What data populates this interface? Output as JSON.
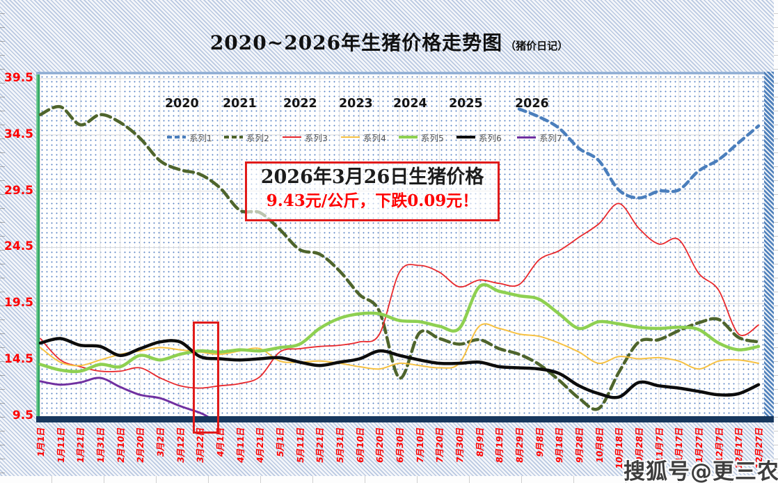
{
  "title": {
    "main": "2020~2026年生猪价格走势图",
    "suffix": "（猪价日记）"
  },
  "annotation": {
    "line1": "2026年3月26日生猪价格",
    "line2": "9.43元/公斤，下跌0.09元！"
  },
  "watermark": "搜狐号@更三农",
  "axis_colors": {
    "tick_label": "#fe0000"
  },
  "chart_data": {
    "type": "line",
    "title": "2020~2026年生猪价格走势图（猪价日记）",
    "ylabel": "",
    "xlabel": "",
    "ylim": [
      9.5,
      40.5
    ],
    "grid": true,
    "legend_position": "top",
    "y_ticks": [
      39.5,
      34.5,
      29.5,
      24.5,
      19.5,
      14.5,
      9.5
    ],
    "year_labels": [
      "2020",
      "2021",
      "2022",
      "2023",
      "2024",
      "2025",
      "2026"
    ],
    "x_tick_labels": [
      "1月1日",
      "1月11日",
      "1月21日",
      "1月31日",
      "2月10日",
      "2月20日",
      "3月2日",
      "3月12日",
      "3月22日",
      "4月1日",
      "4月11日",
      "4月21日",
      "5月1日",
      "5月11日",
      "5月21日",
      "5月31日",
      "6月10日",
      "6月20日",
      "6月30日",
      "7月10日",
      "7月20日",
      "7月30日",
      "8月9日",
      "8月19日",
      "8月29日",
      "9月8日",
      "9月18日",
      "9月28日",
      "10月8日",
      "10月18日",
      "10月28日",
      "11月7日",
      "11月17日",
      "11月27日",
      "12月7日",
      "12月17日",
      "12月27日"
    ],
    "highlight_range": {
      "from_label": "3月22日",
      "to_label": "4月1日"
    },
    "series": [
      {
        "name": "系列1",
        "year": "2020",
        "color": "#4a7ebc",
        "width": 4.5,
        "dash": "10 7",
        "values": [
          null,
          null,
          null,
          null,
          null,
          null,
          null,
          null,
          null,
          null,
          null,
          null,
          null,
          null,
          null,
          null,
          null,
          null,
          null,
          null,
          null,
          null,
          null,
          null,
          36.8,
          36.1,
          35.1,
          33.3,
          32.2,
          29.6,
          28.9,
          29.5,
          29.6,
          31.3,
          32.3,
          33.8,
          35.3
        ]
      },
      {
        "name": "系列2",
        "year": "2021",
        "color": "#4e642c",
        "width": 4.5,
        "dash": "14 7",
        "values": [
          36.3,
          37.0,
          35.4,
          36.3,
          35.6,
          34.2,
          32.2,
          31.4,
          31.0,
          29.8,
          27.8,
          27.6,
          26.1,
          24.3,
          23.9,
          22.4,
          20.3,
          18.8,
          12.9,
          16.9,
          16.4,
          15.9,
          16.3,
          15.5,
          15.0,
          14.1,
          12.7,
          11.1,
          10.2,
          13.4,
          16.1,
          16.3,
          17.1,
          17.8,
          18.1,
          16.5,
          16.1
        ]
      },
      {
        "name": "系列3",
        "year": "2022",
        "color": "#e8282c",
        "width": 1.8,
        "dash": null,
        "values": [
          16.4,
          14.5,
          13.9,
          13.5,
          13.5,
          13.8,
          12.9,
          12.2,
          12.0,
          12.2,
          12.4,
          13.0,
          15.2,
          15.5,
          15.7,
          15.8,
          16.1,
          16.8,
          22.3,
          22.9,
          22.3,
          21.0,
          21.6,
          21.3,
          21.2,
          23.4,
          24.2,
          25.4,
          26.6,
          28.4,
          26.2,
          24.8,
          25.2,
          22.2,
          20.7,
          16.8,
          17.6
        ]
      },
      {
        "name": "系列4",
        "year": "2023",
        "color": "#f6c142",
        "width": 2,
        "dash": null,
        "values": [
          15.6,
          14.3,
          14.0,
          14.5,
          15.0,
          15.3,
          15.6,
          15.4,
          15.2,
          15.0,
          15.3,
          15.5,
          14.4,
          14.3,
          14.4,
          14.2,
          13.9,
          13.7,
          14.2,
          14.0,
          13.8,
          14.2,
          17.5,
          17.3,
          16.8,
          16.6,
          16.0,
          15.2,
          14.2,
          14.8,
          14.6,
          14.7,
          14.4,
          13.7,
          14.4,
          14.5,
          14.2
        ]
      },
      {
        "name": "系列5",
        "year": "2024",
        "color": "#8ed051",
        "width": 4.5,
        "dash": null,
        "values": [
          14.1,
          13.6,
          13.5,
          14.1,
          13.9,
          14.9,
          14.5,
          15.0,
          15.3,
          15.2,
          15.4,
          15.3,
          15.6,
          15.9,
          17.3,
          18.2,
          18.6,
          18.6,
          18.0,
          17.9,
          17.5,
          17.3,
          21.0,
          20.6,
          20.2,
          19.9,
          18.6,
          17.3,
          17.9,
          17.7,
          17.4,
          17.3,
          17.4,
          17.2,
          16.0,
          15.4,
          15.7
        ]
      },
      {
        "name": "系列6",
        "year": "2025",
        "color": "#0c0c0c",
        "width": 4.5,
        "dash": null,
        "values": [
          16.0,
          16.4,
          15.8,
          15.7,
          14.9,
          15.5,
          16.1,
          16.1,
          14.8,
          14.6,
          14.5,
          14.6,
          14.7,
          14.3,
          14.0,
          14.3,
          14.6,
          15.3,
          14.9,
          14.5,
          14.2,
          14.2,
          14.3,
          13.9,
          13.8,
          13.7,
          13.3,
          12.2,
          11.5,
          11.2,
          12.5,
          12.2,
          12.0,
          11.7,
          11.4,
          11.5,
          12.3
        ]
      },
      {
        "name": "系列7",
        "year": "2026",
        "color": "#7030a0",
        "width": 3,
        "dash": null,
        "values": [
          12.6,
          12.3,
          12.5,
          12.9,
          12.1,
          11.4,
          11.1,
          10.4,
          9.8,
          null,
          null,
          null,
          null,
          null,
          null,
          null,
          null,
          null,
          null,
          null,
          null,
          null,
          null,
          null,
          null,
          null,
          null,
          null,
          null,
          null,
          null,
          null,
          null,
          null,
          null,
          null,
          null
        ],
        "end_point": {
          "i": 8.4,
          "v": 9.45
        }
      }
    ]
  }
}
